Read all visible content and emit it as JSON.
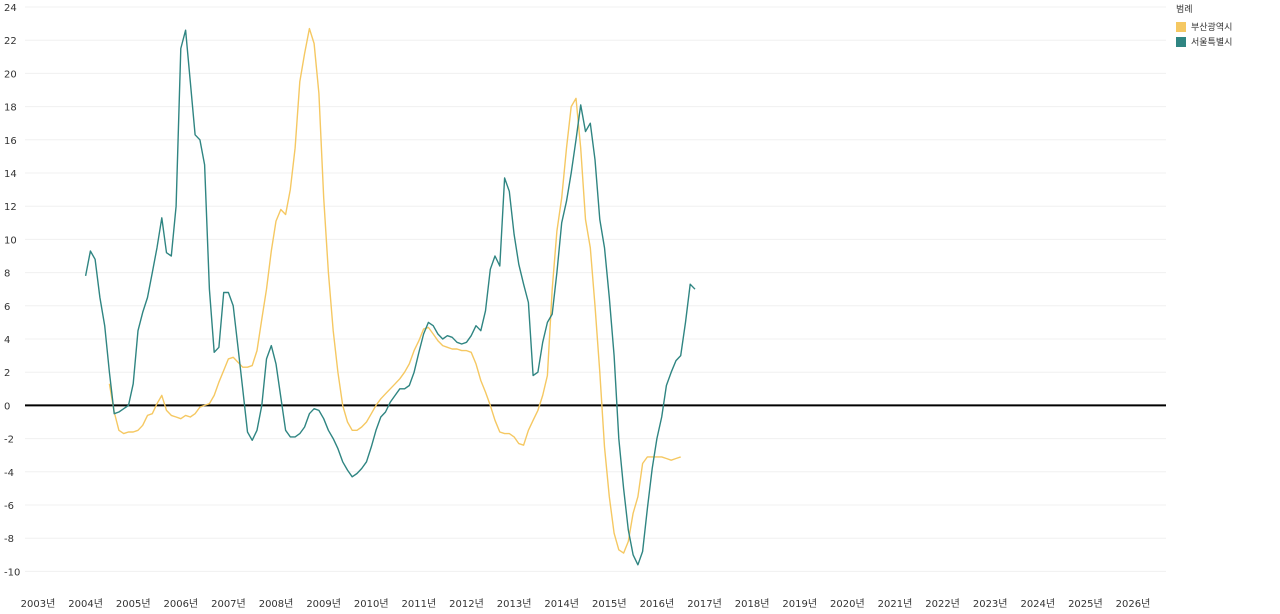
{
  "chart_data": {
    "type": "line",
    "x_start_year": 2004.0,
    "x_step": 0.1,
    "xlim": [
      2003,
      2026.3
    ],
    "ylim": [
      -11,
      24
    ],
    "yticks": [
      24,
      22,
      20,
      18,
      16,
      14,
      12,
      10,
      8,
      6,
      4,
      2,
      0,
      -2,
      -4,
      -6,
      -8,
      -10
    ],
    "xticks": [
      "2003년",
      "2004년",
      "2005년",
      "2006년",
      "2007년",
      "2008년",
      "2009년",
      "2010년",
      "2011년",
      "2012년",
      "2013년",
      "2014년",
      "2015년",
      "2016년",
      "2017년",
      "2018년",
      "2019년",
      "2020년",
      "2021년",
      "2022년",
      "2023년",
      "2024년",
      "2025년",
      "2026년"
    ],
    "baseline": 0,
    "legend": {
      "title": "범례",
      "position": "top-right",
      "items": [
        {
          "label": "부산광역시",
          "color": "#f5c862"
        },
        {
          "label": "서울특별시",
          "color": "#2f8582"
        }
      ]
    },
    "series": [
      {
        "name": "부산광역시",
        "color": "#f5c862",
        "start_year": 2004.5,
        "values": [
          1.3,
          -0.4,
          -1.5,
          -1.7,
          -1.6,
          -1.6,
          -1.5,
          -1.2,
          -0.6,
          -0.5,
          0.1,
          0.6,
          -0.3,
          -0.6,
          -0.7,
          -0.8,
          -0.6,
          -0.7,
          -0.5,
          -0.1,
          0.0,
          0.1,
          0.6,
          1.4,
          2.1,
          2.8,
          2.9,
          2.6,
          2.3,
          2.3,
          2.4,
          3.3,
          5.2,
          7.0,
          9.3,
          11.1,
          11.8,
          11.5,
          13.0,
          15.5,
          19.5,
          21.2,
          22.7,
          21.8,
          18.8,
          12.5,
          8.0,
          4.5,
          2.0,
          0.0,
          -1.0,
          -1.5,
          -1.5,
          -1.3,
          -1.0,
          -0.5,
          0.0,
          0.4,
          0.7,
          1.0,
          1.3,
          1.6,
          2.0,
          2.5,
          3.3,
          3.9,
          4.6,
          4.7,
          4.3,
          3.9,
          3.6,
          3.5,
          3.4,
          3.4,
          3.3,
          3.3,
          3.2,
          2.5,
          1.5,
          0.8,
          0.0,
          -0.9,
          -1.6,
          -1.7,
          -1.7,
          -1.9,
          -2.3,
          -2.4,
          -1.5,
          -0.9,
          -0.3,
          0.6,
          1.8,
          7.0,
          10.5,
          12.5,
          15.5,
          18.0,
          18.5,
          15.5,
          11.2,
          9.5,
          6.0,
          2.0,
          -2.5,
          -5.5,
          -7.7,
          -8.7,
          -8.9,
          -8.2,
          -6.5,
          -5.5,
          -3.5,
          -3.1,
          -3.1,
          -3.1,
          -3.1,
          -3.2,
          -3.3,
          -3.2,
          -3.1
        ]
      },
      {
        "name": "서울특별시",
        "color": "#2f8582",
        "start_year": 2004.0,
        "values": [
          7.8,
          9.3,
          8.8,
          6.5,
          4.8,
          2.0,
          -0.5,
          -0.4,
          -0.2,
          0.0,
          1.3,
          4.5,
          5.6,
          6.5,
          8.0,
          9.5,
          11.3,
          9.2,
          9.0,
          12.0,
          21.5,
          22.6,
          19.5,
          16.3,
          16.0,
          14.5,
          7.0,
          3.2,
          3.5,
          6.8,
          6.8,
          6.0,
          3.5,
          1.0,
          -1.6,
          -2.1,
          -1.5,
          0.0,
          2.8,
          3.6,
          2.5,
          0.5,
          -1.5,
          -1.9,
          -1.9,
          -1.7,
          -1.3,
          -0.5,
          -0.2,
          -0.3,
          -0.8,
          -1.5,
          -2.0,
          -2.6,
          -3.4,
          -3.9,
          -4.3,
          -4.1,
          -3.8,
          -3.4,
          -2.5,
          -1.5,
          -0.7,
          -0.4,
          0.2,
          0.6,
          1.0,
          1.0,
          1.2,
          2.0,
          3.2,
          4.3,
          5.0,
          4.8,
          4.3,
          4.0,
          4.2,
          4.1,
          3.8,
          3.7,
          3.8,
          4.2,
          4.8,
          4.5,
          5.7,
          8.2,
          9.0,
          8.4,
          13.7,
          12.9,
          10.3,
          8.5,
          7.3,
          6.2,
          1.8,
          2.0,
          3.8,
          5.0,
          5.5,
          8.0,
          11.0,
          12.3,
          14.0,
          16.0,
          18.1,
          16.5,
          17.0,
          14.8,
          11.2,
          9.5,
          6.5,
          3.0,
          -2.0,
          -5.0,
          -7.5,
          -9.0,
          -9.6,
          -8.8,
          -6.2,
          -3.8,
          -2.0,
          -0.7,
          1.2,
          2.0,
          2.7,
          3.0,
          5.0,
          7.3,
          7.0
        ]
      }
    ]
  }
}
